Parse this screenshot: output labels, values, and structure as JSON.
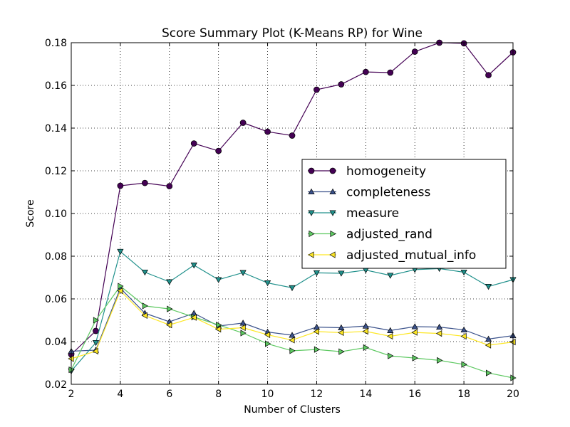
{
  "chart_data": {
    "type": "line",
    "title": "Score Summary Plot (K-Means RP) for Wine",
    "xlabel": "Number of Clusters",
    "ylabel": "Score",
    "xlim": [
      2,
      20
    ],
    "ylim": [
      0.02,
      0.18
    ],
    "xticks": [
      2,
      4,
      6,
      8,
      10,
      12,
      14,
      16,
      18,
      20
    ],
    "yticks": [
      "0.02",
      "0.04",
      "0.06",
      "0.08",
      "0.10",
      "0.12",
      "0.14",
      "0.16",
      "0.18"
    ],
    "grid": true,
    "legend_position": "center-right",
    "x": [
      2,
      3,
      4,
      5,
      6,
      7,
      8,
      9,
      10,
      11,
      12,
      13,
      14,
      15,
      16,
      17,
      18,
      19,
      20
    ],
    "series": [
      {
        "name": "homogeneity",
        "color": "#440154",
        "marker": "circle",
        "values": [
          0.034,
          0.045,
          0.113,
          0.1143,
          0.1128,
          0.1328,
          0.1293,
          0.1425,
          0.1383,
          0.1365,
          0.158,
          0.1605,
          0.1663,
          0.166,
          0.1758,
          0.18,
          0.1797,
          0.1648,
          0.1755
        ]
      },
      {
        "name": "completeness",
        "color": "#3b528b",
        "marker": "triangle-up",
        "values": [
          0.0355,
          0.036,
          0.065,
          0.0533,
          0.0493,
          0.0533,
          0.0473,
          0.0487,
          0.0445,
          0.043,
          0.0468,
          0.0465,
          0.0473,
          0.0452,
          0.047,
          0.0468,
          0.0455,
          0.0412,
          0.0428
        ]
      },
      {
        "name": "measure",
        "color": "#21918c",
        "marker": "triangle-down",
        "values": [
          0.0262,
          0.0395,
          0.0822,
          0.0725,
          0.068,
          0.0758,
          0.069,
          0.0723,
          0.0675,
          0.0652,
          0.0722,
          0.072,
          0.0735,
          0.071,
          0.0737,
          0.0742,
          0.0725,
          0.0658,
          0.069
        ]
      },
      {
        "name": "adjusted_rand",
        "color": "#5ec962",
        "marker": "triangle-right",
        "values": [
          0.0268,
          0.05,
          0.066,
          0.0567,
          0.0553,
          0.0515,
          0.0478,
          0.044,
          0.039,
          0.0357,
          0.0363,
          0.0353,
          0.0372,
          0.0333,
          0.0323,
          0.0312,
          0.0293,
          0.0253,
          0.023
        ]
      },
      {
        "name": "adjusted_mutual_info",
        "color": "#fde725",
        "marker": "triangle-left",
        "values": [
          0.032,
          0.0355,
          0.0638,
          0.0522,
          0.0478,
          0.0513,
          0.0458,
          0.0465,
          0.0432,
          0.0407,
          0.0447,
          0.0442,
          0.0448,
          0.0425,
          0.0443,
          0.0438,
          0.0425,
          0.0383,
          0.0398
        ]
      }
    ]
  }
}
